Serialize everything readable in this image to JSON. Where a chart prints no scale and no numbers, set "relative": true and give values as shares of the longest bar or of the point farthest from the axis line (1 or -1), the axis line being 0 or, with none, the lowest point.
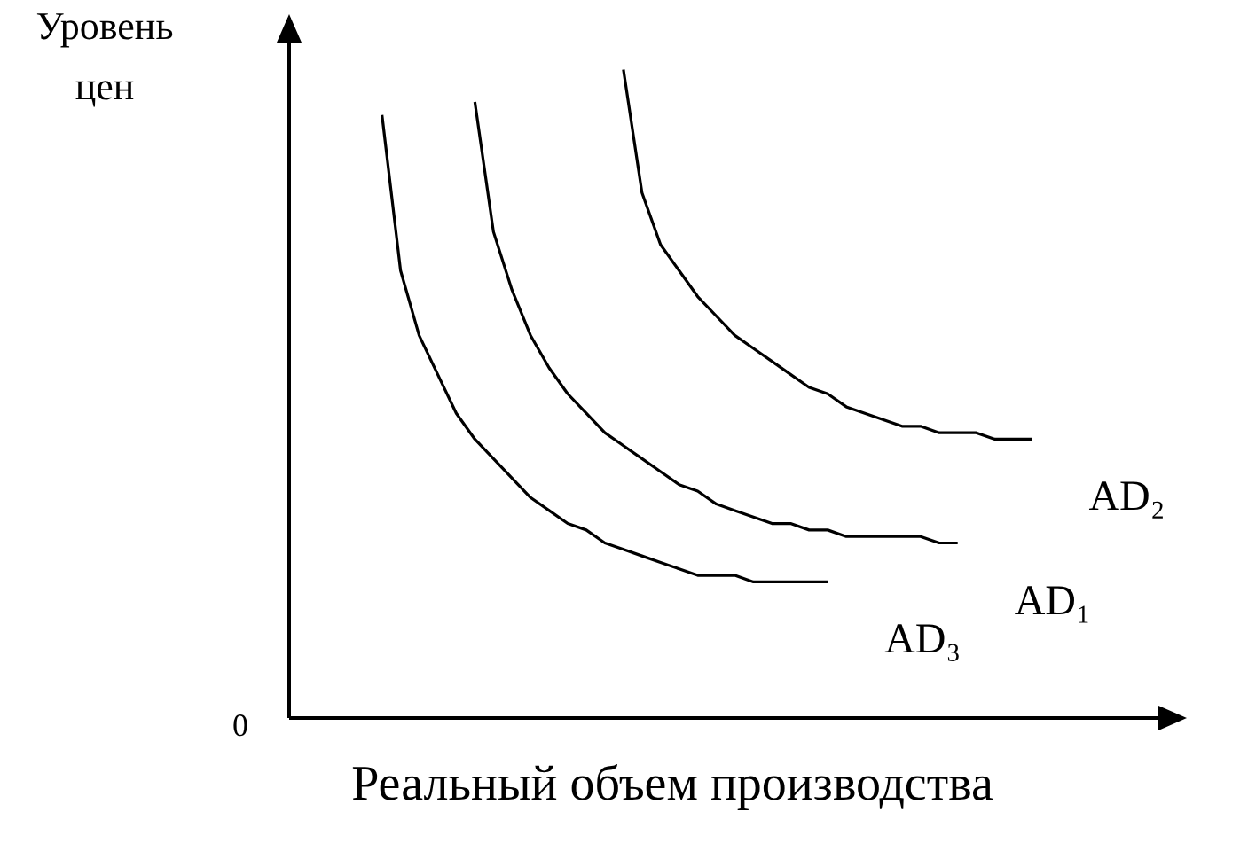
{
  "chart_data": {
    "type": "line",
    "relative": true,
    "xlabel": "Реальный объем производства",
    "ylabel": "Уровень цен",
    "annotations": [
      "0"
    ],
    "categories": [
      null,
      null,
      null,
      null,
      null,
      null,
      null,
      null,
      null,
      null,
      null,
      null,
      null,
      null,
      null,
      null,
      null,
      null,
      null,
      null,
      null,
      null,
      null,
      null,
      null,
      null,
      null,
      null,
      null,
      null,
      null,
      null,
      null,
      null,
      null,
      null,
      null,
      null,
      null,
      null,
      null,
      null,
      null,
      null,
      null,
      null,
      null,
      null
    ],
    "series": [
      {
        "name": "AD₃",
        "color": "#000000",
        "values": [
          null,
          null,
          null,
          null,
          null,
          0.93,
          0.69,
          0.59,
          0.53,
          0.47,
          0.43,
          0.4,
          0.37,
          0.34,
          0.32,
          0.3,
          0.29,
          0.27,
          0.26,
          0.25,
          0.24,
          0.23,
          0.22,
          0.22,
          0.22,
          0.21,
          0.21,
          0.21,
          0.21,
          0.21,
          null,
          null,
          null,
          null,
          null,
          null,
          null,
          null,
          null,
          null,
          null,
          null,
          null,
          null,
          null,
          null,
          null,
          null
        ]
      },
      {
        "name": "AD₁",
        "color": "#000000",
        "values": [
          null,
          null,
          null,
          null,
          null,
          null,
          null,
          null,
          null,
          null,
          0.95,
          0.75,
          0.66,
          0.59,
          0.54,
          0.5,
          0.47,
          0.44,
          0.42,
          0.4,
          0.38,
          0.36,
          0.35,
          0.33,
          0.32,
          0.31,
          0.3,
          0.3,
          0.29,
          0.29,
          0.28,
          0.28,
          0.28,
          0.28,
          0.28,
          0.27,
          0.27,
          null,
          null,
          null,
          null,
          null,
          null,
          null,
          null,
          null,
          null,
          null
        ]
      },
      {
        "name": "AD₂",
        "color": "#000000",
        "values": [
          null,
          null,
          null,
          null,
          null,
          null,
          null,
          null,
          null,
          null,
          null,
          null,
          null,
          null,
          null,
          null,
          null,
          null,
          1.0,
          0.81,
          0.73,
          0.69,
          0.65,
          0.62,
          0.59,
          0.57,
          0.55,
          0.53,
          0.51,
          0.5,
          0.48,
          0.47,
          0.46,
          0.45,
          0.45,
          0.44,
          0.44,
          0.44,
          0.43,
          0.43,
          0.43,
          null,
          null,
          null,
          null,
          null,
          null,
          null
        ]
      }
    ]
  }
}
